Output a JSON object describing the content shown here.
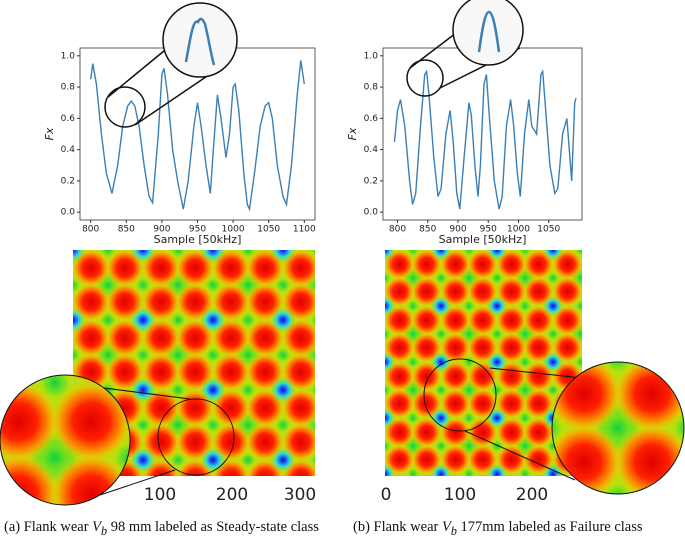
{
  "chart_data": [
    {
      "type": "line",
      "xlabel": "Sample [50kHz]",
      "ylabel": "Fx",
      "color": "#3a7fb5",
      "xlim": [
        785,
        1115
      ],
      "ylim": [
        -0.05,
        1.05
      ],
      "xticks": [
        800,
        850,
        900,
        950,
        1000,
        1050,
        1100
      ],
      "yticks": [
        {
          "value": 0,
          "label": "0.0"
        },
        0.2,
        0.4,
        0.6,
        0.8,
        {
          "value": 1,
          "label": "1.0"
        }
      ],
      "x": [
        800,
        803,
        808,
        815,
        822,
        830,
        838,
        845,
        852,
        857,
        862,
        868,
        875,
        882,
        887,
        895,
        900,
        903,
        908,
        915,
        922,
        930,
        937,
        945,
        950,
        955,
        962,
        968,
        973,
        978,
        983,
        990,
        995,
        1000,
        1003,
        1008,
        1015,
        1020,
        1023,
        1030,
        1038,
        1045,
        1050,
        1055,
        1062,
        1070,
        1075,
        1082,
        1090,
        1095,
        1100
      ],
      "values": [
        0.85,
        0.95,
        0.82,
        0.5,
        0.25,
        0.12,
        0.3,
        0.55,
        0.68,
        0.71,
        0.68,
        0.55,
        0.3,
        0.1,
        0.06,
        0.5,
        0.88,
        0.92,
        0.75,
        0.4,
        0.2,
        0.02,
        0.2,
        0.55,
        0.7,
        0.55,
        0.3,
        0.12,
        0.45,
        0.75,
        0.6,
        0.35,
        0.5,
        0.8,
        0.82,
        0.65,
        0.25,
        0.05,
        0.02,
        0.25,
        0.55,
        0.68,
        0.7,
        0.6,
        0.3,
        0.1,
        0.05,
        0.3,
        0.75,
        0.97,
        0.82
      ]
    },
    {
      "type": "line",
      "xlabel": "Sample [50kHz]",
      "ylabel": "Fx",
      "color": "#3a7fb5",
      "xlim": [
        776,
        1105
      ],
      "ylim": [
        -0.05,
        1.05
      ],
      "xticks": [
        800,
        850,
        900,
        950,
        1000,
        1050
      ],
      "yticks": [
        {
          "value": 0,
          "label": "0.0"
        },
        0.2,
        0.4,
        0.6,
        0.8,
        {
          "value": 1,
          "label": "1.0"
        }
      ],
      "x": [
        795,
        800,
        805,
        812,
        820,
        825,
        830,
        838,
        845,
        848,
        852,
        860,
        867,
        872,
        880,
        887,
        892,
        898,
        903,
        910,
        918,
        922,
        928,
        933,
        937,
        943,
        947,
        952,
        960,
        968,
        973,
        980,
        987,
        992,
        998,
        1003,
        1010,
        1017,
        1022,
        1030,
        1037,
        1040,
        1045,
        1052,
        1060,
        1065,
        1073,
        1080,
        1085,
        1088,
        1093,
        1095
      ],
      "values": [
        0.45,
        0.65,
        0.72,
        0.55,
        0.2,
        0.05,
        0.12,
        0.55,
        0.88,
        0.9,
        0.75,
        0.35,
        0.1,
        0.15,
        0.5,
        0.65,
        0.45,
        0.12,
        0.02,
        0.35,
        0.7,
        0.62,
        0.3,
        0.1,
        0.3,
        0.82,
        0.88,
        0.6,
        0.2,
        0.02,
        0.1,
        0.55,
        0.72,
        0.55,
        0.25,
        0.1,
        0.5,
        0.72,
        0.55,
        0.5,
        0.88,
        0.9,
        0.65,
        0.3,
        0.12,
        0.15,
        0.5,
        0.6,
        0.35,
        0.2,
        0.7,
        0.73
      ]
    }
  ],
  "heatmaps": [
    {
      "xticks": [
        "100",
        "200",
        "300"
      ]
    },
    {
      "xticks": [
        "0",
        "100",
        "200"
      ]
    }
  ],
  "captions": [
    {
      "prefix": "(a) Flank wear",
      "var": "V",
      "sub": "b",
      "rest": "98 mm labeled as Steady-state class"
    },
    {
      "prefix": "(b) Flank wear",
      "var": "V",
      "sub": "b",
      "rest": "177mm labeled as Failure class"
    }
  ]
}
